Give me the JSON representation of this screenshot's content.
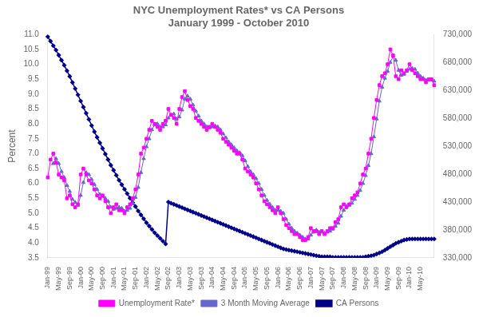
{
  "chart_data": {
    "type": "line",
    "title": "NYC Unemployment Rates* vs CA Persons\nJanuary 1999 - October 2010",
    "ylabel": "Percent",
    "categories": [
      "Jan-99",
      null,
      null,
      null,
      "May-99",
      null,
      null,
      null,
      "Sep-99",
      null,
      null,
      null,
      "Jan-00",
      null,
      null,
      null,
      "May-00",
      null,
      null,
      null,
      "Sep-00",
      null,
      null,
      null,
      "Jan-01",
      null,
      null,
      null,
      "May-01",
      null,
      null,
      null,
      "Sep-01",
      null,
      null,
      null,
      "Jan-02",
      null,
      null,
      null,
      "May-02",
      null,
      null,
      null,
      "Sep-02",
      null,
      null,
      null,
      "Jan-03",
      null,
      null,
      null,
      "May-03",
      null,
      null,
      null,
      "Sep-03",
      null,
      null,
      null,
      "Jan-04",
      null,
      null,
      null,
      "May-04",
      null,
      null,
      null,
      "Sep-04",
      null,
      null,
      null,
      "Jan-05",
      null,
      null,
      null,
      "May-05",
      null,
      null,
      null,
      "Sep-05",
      null,
      null,
      null,
      "Jan-06",
      null,
      null,
      null,
      "May-06",
      null,
      null,
      null,
      "Sep-06",
      null,
      null,
      null,
      "Jan-07",
      null,
      null,
      null,
      "May-07",
      null,
      null,
      null,
      "Sep-07",
      null,
      null,
      null,
      "Jan-08",
      null,
      null,
      null,
      "May-08",
      null,
      null,
      null,
      "Sep-08",
      null,
      null,
      null,
      "Jan-09",
      null,
      null,
      null,
      "May-09",
      null,
      null,
      null,
      "Sep-09",
      null,
      null,
      null,
      "Jan-10",
      null,
      null,
      null,
      "May-10",
      null,
      null,
      null,
      null,
      null
    ],
    "series": [
      {
        "name": "Unemployment Rate*",
        "color": "#FF00FF",
        "marker": "square",
        "values": [
          6.2,
          6.8,
          7.0,
          6.7,
          6.3,
          6.2,
          6.1,
          5.5,
          5.6,
          5.3,
          5.2,
          5.3,
          6.3,
          6.5,
          6.3,
          6.1,
          6.0,
          5.8,
          5.6,
          5.5,
          5.6,
          5.4,
          5.2,
          5.0,
          5.2,
          5.3,
          5.1,
          5.1,
          5.0,
          5.2,
          5.3,
          5.5,
          5.8,
          6.3,
          7.0,
          7.2,
          7.5,
          7.8,
          8.1,
          8.0,
          7.9,
          7.8,
          8.0,
          8.1,
          8.5,
          8.3,
          8.2,
          8.0,
          8.5,
          8.9,
          9.1,
          8.8,
          8.6,
          8.5,
          8.2,
          8.1,
          8.0,
          7.9,
          7.8,
          7.9,
          8.0,
          7.9,
          7.8,
          7.7,
          7.5,
          7.4,
          7.3,
          7.2,
          7.1,
          7.0,
          7.0,
          6.8,
          6.5,
          6.4,
          6.3,
          6.2,
          6.0,
          5.8,
          5.6,
          5.4,
          5.3,
          5.2,
          5.1,
          5.0,
          5.2,
          5.0,
          4.8,
          4.6,
          4.5,
          4.4,
          4.3,
          4.3,
          4.2,
          4.1,
          4.1,
          4.2,
          4.5,
          4.4,
          4.4,
          4.3,
          4.4,
          4.3,
          4.4,
          4.5,
          4.5,
          4.7,
          4.8,
          5.2,
          5.3,
          5.2,
          5.3,
          5.5,
          5.6,
          5.7,
          6.0,
          6.3,
          6.5,
          7.0,
          7.5,
          8.2,
          8.8,
          9.3,
          9.6,
          9.7,
          10.0,
          10.5,
          10.3,
          9.6,
          9.5,
          9.8,
          9.7,
          9.8,
          10.0,
          9.8,
          9.7,
          9.6,
          9.5,
          9.5,
          9.4,
          9.5,
          9.5,
          9.3
        ]
      },
      {
        "name": "3 Month Moving Average",
        "color": "#6666CC",
        "marker": "triangle",
        "values": [
          null,
          null,
          6.666667,
          6.833333,
          6.666667,
          6.4,
          6.2,
          5.933333,
          5.733333,
          5.466667,
          5.366667,
          5.266667,
          5.6,
          6.033333,
          6.366667,
          6.3,
          6.133333,
          5.966667,
          5.8,
          5.633333,
          5.566667,
          5.5,
          5.4,
          5.2,
          5.133333,
          5.166667,
          5.2,
          5.166667,
          5.066667,
          5.1,
          5.166667,
          5.333333,
          5.533333,
          5.866667,
          6.366667,
          6.833333,
          7.233333,
          7.5,
          7.8,
          7.966667,
          8.0,
          7.9,
          7.9,
          7.966667,
          8.2,
          8.3,
          8.333333,
          8.166667,
          8.233333,
          8.466667,
          8.833333,
          8.933333,
          8.833333,
          8.633333,
          8.433333,
          8.266667,
          8.1,
          8.0,
          7.9,
          7.866667,
          7.9,
          7.933333,
          7.9,
          7.8,
          7.666667,
          7.533333,
          7.4,
          7.3,
          7.2,
          7.1,
          7.033333,
          6.933333,
          6.766667,
          6.566667,
          6.4,
          6.3,
          6.166667,
          6.0,
          5.8,
          5.6,
          5.433333,
          5.3,
          5.2,
          5.1,
          5.1,
          5.066667,
          5.0,
          4.8,
          4.633333,
          4.5,
          4.4,
          4.333333,
          4.266667,
          4.2,
          4.133333,
          4.133333,
          4.266667,
          4.366667,
          4.433333,
          4.366667,
          4.366667,
          4.333333,
          4.366667,
          4.4,
          4.466667,
          4.566667,
          4.666667,
          4.9,
          5.1,
          5.233333,
          5.266667,
          5.333333,
          5.466667,
          5.6,
          5.766667,
          6.0,
          6.266667,
          6.6,
          7.0,
          7.566667,
          8.166667,
          8.766667,
          9.233333,
          9.533333,
          9.766667,
          10.066667,
          10.266667,
          10.133333,
          9.8,
          9.633333,
          9.666667,
          9.766667,
          9.833333,
          9.866667,
          9.833333,
          9.7,
          9.6,
          9.533333,
          9.466667,
          9.466667,
          9.466667,
          9.433333
        ]
      },
      {
        "name": "CA Persons",
        "color": "#00008B",
        "marker": "diamond",
        "axis": "y2",
        "values": [
          726000,
          718000,
          710000,
          702000,
          693000,
          684000,
          675000,
          665000,
          655000,
          644000,
          633000,
          622000,
          611000,
          600000,
          589000,
          578000,
          567000,
          556000,
          546000,
          536000,
          526000,
          516000,
          506000,
          496000,
          487000,
          478000,
          469000,
          461000,
          453000,
          445000,
          437000,
          429000,
          422000,
          414000,
          407000,
          400000,
          393000,
          387000,
          381000,
          375000,
          370000,
          365000,
          360000,
          355000,
          430000,
          428000,
          426000,
          424000,
          422000,
          420000,
          418000,
          416000,
          414000,
          412000,
          410000,
          408000,
          406000,
          404000,
          402000,
          400000,
          398000,
          396000,
          394000,
          392000,
          390000,
          388000,
          386000,
          384000,
          382000,
          380000,
          378000,
          376000,
          374000,
          372000,
          370000,
          368000,
          366000,
          364000,
          362000,
          360000,
          358000,
          356000,
          354000,
          352000,
          350000,
          348000,
          346000,
          345000,
          344000,
          343000,
          342000,
          341000,
          340000,
          339000,
          338000,
          337000,
          336000,
          335000,
          334000,
          333000,
          332000,
          332000,
          332000,
          332000,
          331000,
          331000,
          331000,
          331000,
          331000,
          331000,
          331000,
          331000,
          331000,
          331000,
          331000,
          331000,
          332000,
          333000,
          334000,
          335000,
          337000,
          339000,
          341000,
          344000,
          347000,
          350000,
          353000,
          356000,
          358000,
          360000,
          362000,
          363000,
          364000,
          364000,
          364000,
          364000,
          364000,
          364000,
          364000,
          364000,
          364000,
          364000
        ]
      }
    ],
    "ylim": [
      3.5,
      11.0
    ],
    "yticks": [
      3.5,
      {
        "value": 4.0,
        "label": "4.0"
      },
      4.5,
      {
        "value": 5.0,
        "label": "5.0"
      },
      5.5,
      {
        "value": 6.0,
        "label": "6.0"
      },
      6.5,
      {
        "value": 7.0,
        "label": "7.0"
      },
      7.5,
      {
        "value": 8.0,
        "label": "8.0"
      },
      8.5,
      {
        "value": 9.0,
        "label": "9.0"
      },
      9.5,
      {
        "value": 10.0,
        "label": "10.0"
      },
      10.5,
      {
        "value": 11.0,
        "label": "11.0"
      }
    ],
    "y2lim": [
      330000,
      730000
    ],
    "y2ticks": [
      {
        "value": 330000,
        "label": "330,000"
      },
      {
        "value": 380000,
        "label": "380,000"
      },
      {
        "value": 430000,
        "label": "430,000"
      },
      {
        "value": 480000,
        "label": "480,000"
      },
      {
        "value": 530000,
        "label": "530,000"
      },
      {
        "value": 580000,
        "label": "580,000"
      },
      {
        "value": 630000,
        "label": "630,000"
      },
      {
        "value": 680000,
        "label": "680,000"
      },
      {
        "value": 730000,
        "label": "730,000"
      }
    ],
    "grid": false,
    "legend": "bottom"
  }
}
